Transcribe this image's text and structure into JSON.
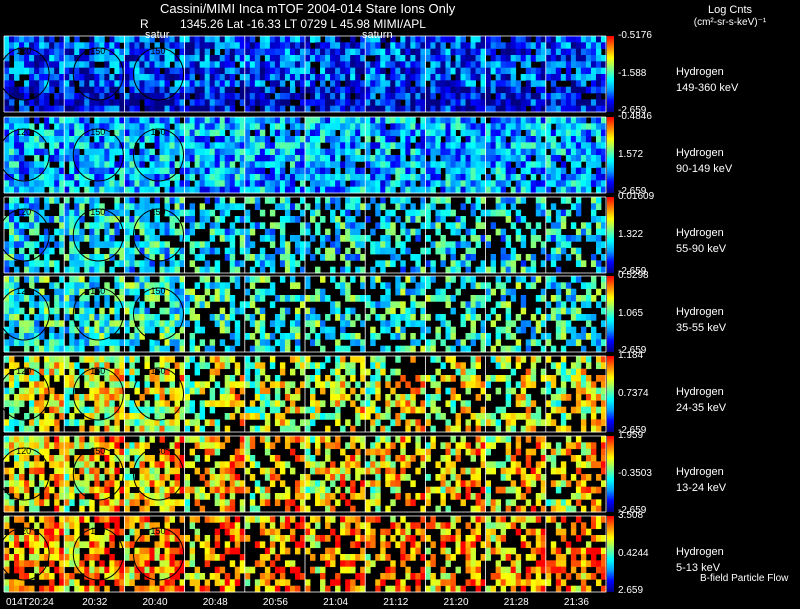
{
  "header": {
    "title": "Cassini/MIMI Inca mTOF  2004-014   Stare   Ions Only",
    "info_r": "R",
    "info_rest": "1345.26 Lat -16.33 LT 0729 L          45.98  MIMI/APL",
    "units_line1": "Log Cnts",
    "units_line2": "(cm²-sr-s-keV)⁻¹",
    "satur_label_1": "satur",
    "satur_label_2": "saturn"
  },
  "chart_data": {
    "type": "heatmap",
    "title": "Cassini/MIMI Inca mTOF  2004-014   Stare   Ions Only",
    "x_ticks": [
      "014T20:24",
      "20:32",
      "20:40",
      "20:48",
      "20:56",
      "21:04",
      "21:12",
      "21:20",
      "21:28",
      "21:36"
    ],
    "colorbar_palette": [
      "#000080",
      "#0000ff",
      "#00a0ff",
      "#00ffff",
      "#80ff80",
      "#ffff00",
      "#ff8000",
      "#ff0000"
    ],
    "rows": [
      {
        "species": "Hydrogen",
        "energy": "149-360 keV",
        "cb_max": "-0.5176",
        "cb_mid": "-1.588",
        "cb_min": "-2.659",
        "mean_level": 0.2
      },
      {
        "species": "Hydrogen",
        "energy": "90-149 keV",
        "cb_max": "-0.4846",
        "cb_mid": "1.572",
        "cb_min": "-2.659",
        "mean_level": 0.32
      },
      {
        "species": "Hydrogen",
        "energy": "55-90 keV",
        "cb_max": "0.01609",
        "cb_mid": "1.322",
        "cb_min": "-2.659",
        "mean_level": 0.4
      },
      {
        "species": "Hydrogen",
        "energy": "35-55 keV",
        "cb_max": "0.5298",
        "cb_mid": "1.065",
        "cb_min": "-2.659",
        "mean_level": 0.45
      },
      {
        "species": "Hydrogen",
        "energy": "24-35 keV",
        "cb_max": "1.184",
        "cb_mid": "0.7374",
        "cb_min": "-2.659",
        "mean_level": 0.58
      },
      {
        "species": "Hydrogen",
        "energy": "13-24 keV",
        "cb_max": "1.959",
        "cb_mid": "-0.3503",
        "cb_min": "-2.659",
        "mean_level": 0.66
      },
      {
        "species": "Hydrogen",
        "energy": "5-13 keV",
        "cb_max": "3.508",
        "cb_mid": "0.4244",
        "cb_min": "2.659",
        "mean_level": 0.74
      }
    ],
    "orbit_markers": [
      "120",
      "150",
      "150"
    ]
  },
  "legend": {
    "bfield_label": "B-field Particle Flow"
  }
}
